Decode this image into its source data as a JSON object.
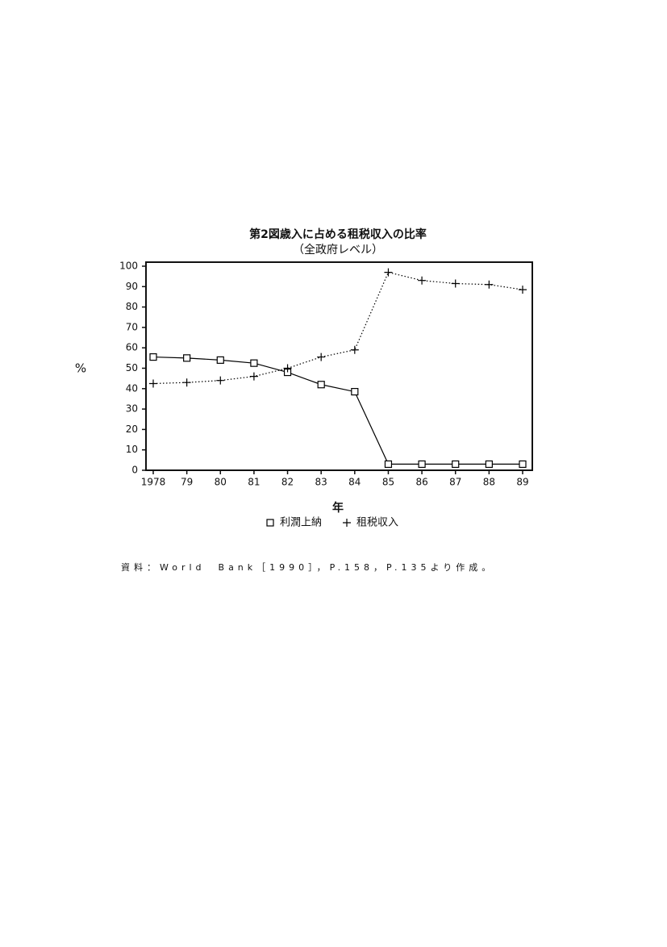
{
  "chart_data": {
    "type": "line",
    "title": "第2図歳入に占める租税収入の比率",
    "subtitle": "（全政府レベル）",
    "y_label": "%",
    "x_label": "年",
    "source": "資料：World　Bank［1990］，P.158，P.135より作成。",
    "categories": [
      "1978",
      "79",
      "80",
      "81",
      "82",
      "83",
      "84",
      "85",
      "86",
      "87",
      "88",
      "89"
    ],
    "series": [
      {
        "name": "利潤上納",
        "color": "#000000",
        "marker": "square",
        "dash": "solid",
        "values": [
          55.5,
          55,
          54,
          52.5,
          48,
          42,
          38.5,
          3,
          3,
          3,
          3,
          3
        ]
      },
      {
        "name": "租税収入",
        "color": "#000000",
        "marker": "plus",
        "dash": "dotted",
        "values": [
          42.5,
          43,
          44,
          46,
          50,
          55.5,
          59,
          97,
          93,
          91.5,
          91,
          88.5
        ]
      }
    ],
    "ylim": [
      0,
      100
    ],
    "yticks": [
      0,
      10,
      20,
      30,
      40,
      50,
      60,
      70,
      80,
      90,
      100
    ],
    "grid": false,
    "legend": "bottom"
  }
}
